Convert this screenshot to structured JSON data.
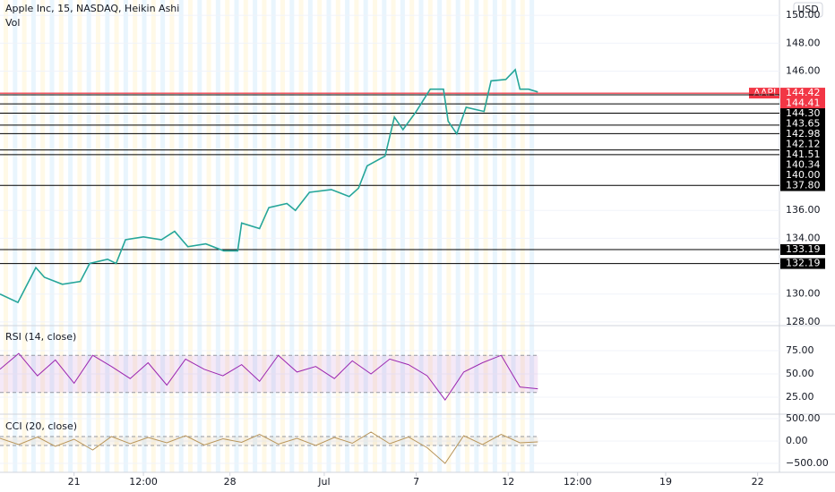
{
  "chart_data": [
    {
      "type": "line",
      "title": "Apple Inc, 15, NASDAQ, Heikin Ashi",
      "subtitle": "Vol",
      "currency": "USD",
      "color": "#26a69a",
      "x": [
        0,
        2.3,
        3.4,
        4.6,
        5.7,
        8,
        10.3,
        11.5,
        13.8,
        14.9,
        16.1,
        18.4,
        20.7,
        22.4,
        24.1,
        26.4,
        28.7,
        30.5,
        30.5,
        31,
        33.3,
        34.5,
        36.8,
        37.9,
        39.7,
        42.5,
        44.8,
        46,
        47.1,
        49.4,
        50.6,
        51.7,
        53.4,
        55.2,
        56.9,
        57.5,
        58.6,
        59.8,
        62.1,
        63,
        64.9,
        66.1,
        66.7,
        67.8,
        69
      ],
      "values": [
        130,
        129.4,
        130.6,
        131.9,
        131.2,
        130.7,
        130.9,
        132.2,
        132.5,
        132.2,
        133.9,
        134.1,
        133.9,
        134.5,
        133.4,
        133.6,
        133.1,
        133.1,
        133.1,
        135.1,
        134.7,
        136.2,
        136.5,
        136,
        137.3,
        137.5,
        137,
        137.6,
        139.2,
        139.9,
        142.7,
        141.8,
        143.1,
        144.7,
        144.7,
        142.4,
        141.5,
        143.4,
        143.1,
        145.3,
        145.4,
        146.1,
        144.7,
        144.7,
        144.5
      ],
      "xlim": [
        0,
        100
      ],
      "ylim": [
        127.8,
        151.1
      ],
      "yticks": [
        {
          "value": 128,
          "label": "128.00"
        },
        {
          "value": 130,
          "label": "130.00"
        },
        {
          "value": 134,
          "label": "134.00"
        },
        {
          "value": 136,
          "label": "136.00"
        },
        {
          "value": 146,
          "label": "146.00"
        },
        {
          "value": 148,
          "label": "148.00"
        },
        {
          "value": 150,
          "label": "150.00"
        }
      ],
      "last_label": "AAPL",
      "levels": [
        {
          "value": 144.42,
          "label": "144.42",
          "color": "#f23645"
        },
        {
          "value": 144.41,
          "label": "144.41",
          "color": "#f23645"
        },
        {
          "value": 144.3,
          "label": "144.30",
          "color": "#000000"
        },
        {
          "value": 143.65,
          "label": "143.65",
          "color": "#000000"
        },
        {
          "value": 142.98,
          "label": "142.98",
          "color": "#000000"
        },
        {
          "value": 142.12,
          "label": "142.12",
          "color": "#000000"
        },
        {
          "value": 141.51,
          "label": "141.51",
          "color": "#000000"
        },
        {
          "value": 140.34,
          "label": "140.34",
          "color": "#000000"
        },
        {
          "value": 140,
          "label": "140.00",
          "color": "#000000"
        },
        {
          "value": 137.8,
          "label": "137.80",
          "color": "#000000"
        },
        {
          "value": 133.19,
          "label": "133.19",
          "color": "#000000"
        },
        {
          "value": 132.19,
          "label": "132.19",
          "color": "#000000"
        }
      ]
    },
    {
      "type": "line",
      "title": "RSI (14, close)",
      "color": "#9c27b0",
      "x": [
        0,
        2.4,
        4.8,
        7.1,
        9.5,
        11.9,
        14.3,
        16.7,
        19,
        21.4,
        23.8,
        26.2,
        28.6,
        31,
        33.3,
        35.7,
        38.1,
        40.5,
        42.9,
        45.2,
        47.6,
        50,
        52.4,
        54.8,
        57.1,
        59.5,
        61.9,
        64.3,
        66.7,
        69
      ],
      "values": [
        55,
        72,
        48,
        65,
        40,
        70,
        58,
        45,
        62,
        38,
        66,
        55,
        48,
        60,
        42,
        70,
        52,
        58,
        45,
        64,
        50,
        66,
        60,
        48,
        22,
        52,
        62,
        70,
        36,
        34
      ],
      "xlim": [
        0,
        100
      ],
      "ylim": [
        7.7,
        100
      ],
      "yticks": [
        {
          "value": 25,
          "label": "25.00"
        },
        {
          "value": 50,
          "label": "50.00"
        },
        {
          "value": 75,
          "label": "75.00"
        }
      ],
      "band": [
        30,
        70
      ]
    },
    {
      "type": "line",
      "title": "CCI (20, close)",
      "color": "#b8955a",
      "x": [
        0,
        2.4,
        4.8,
        7.1,
        9.5,
        11.9,
        14.3,
        16.7,
        19,
        21.4,
        23.8,
        26.2,
        28.6,
        31,
        33.3,
        35.7,
        38.1,
        40.5,
        42.9,
        45.2,
        47.6,
        50,
        52.4,
        54.8,
        57.1,
        59.5,
        61.9,
        64.3,
        66.7,
        69
      ],
      "values": [
        60,
        -80,
        90,
        -120,
        40,
        -200,
        100,
        -60,
        80,
        -40,
        120,
        -90,
        50,
        -30,
        150,
        -70,
        60,
        -100,
        80,
        -50,
        200,
        -60,
        90,
        -150,
        -500,
        120,
        -80,
        150,
        -40,
        -20
      ],
      "xlim": [
        0,
        100
      ],
      "ylim": [
        -700,
        580
      ],
      "yticks": [
        {
          "value": -500,
          "label": "−500.00"
        },
        {
          "value": 0,
          "label": "0.00"
        },
        {
          "value": 500,
          "label": "500.00"
        }
      ],
      "band": [
        -100,
        100
      ],
      "xticks": [
        {
          "value": 9.5,
          "label": "21"
        },
        {
          "value": 18.4,
          "label": "12:00"
        },
        {
          "value": 29.5,
          "label": "28"
        },
        {
          "value": 41.6,
          "label": "Jul"
        },
        {
          "value": 53.4,
          "label": "7"
        },
        {
          "value": 65.2,
          "label": "12"
        },
        {
          "value": 74.1,
          "label": "12:00"
        },
        {
          "value": 85.4,
          "label": "19"
        },
        {
          "value": 97.2,
          "label": "22"
        }
      ]
    }
  ]
}
